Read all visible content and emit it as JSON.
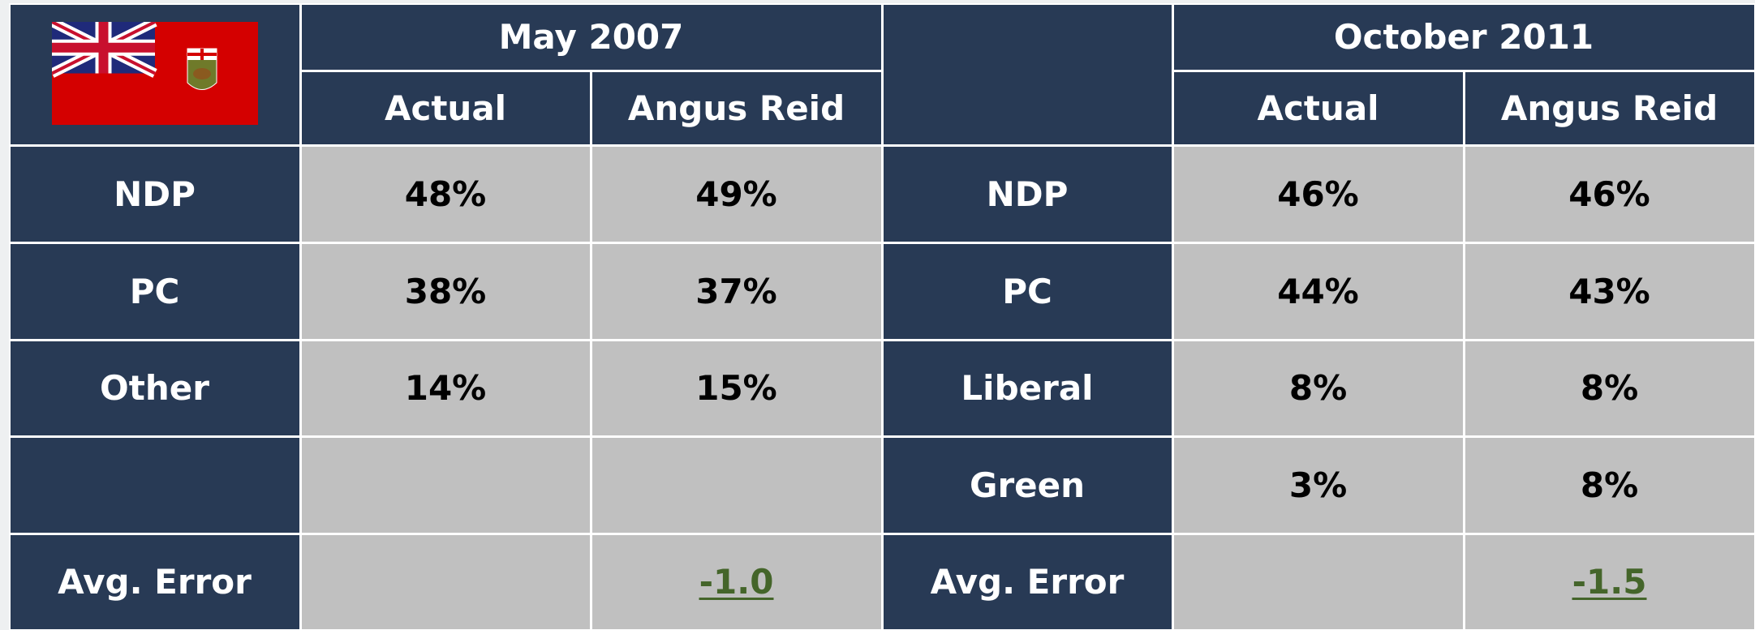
{
  "left": {
    "title": "May 2007",
    "subheaders": [
      "Actual",
      "Angus Reid"
    ],
    "rows": [
      [
        "NDP",
        "48%",
        "49%"
      ],
      [
        "PC",
        "38%",
        "37%"
      ],
      [
        "Other",
        "14%",
        "15%"
      ]
    ],
    "avg_error": {
      "label": "Avg. Error",
      "angus_reid": "-1.0"
    }
  },
  "right": {
    "title": "October 2011",
    "subheaders": [
      "Actual",
      "Angus Reid"
    ],
    "rows": [
      [
        "NDP",
        "46%",
        "46%"
      ],
      [
        "PC",
        "44%",
        "43%"
      ],
      [
        "Liberal",
        "8%",
        "8%"
      ],
      [
        "Green",
        "3%",
        "8%"
      ]
    ],
    "avg_error": {
      "label": "Avg. Error",
      "angus_reid": "-1.5"
    }
  }
}
